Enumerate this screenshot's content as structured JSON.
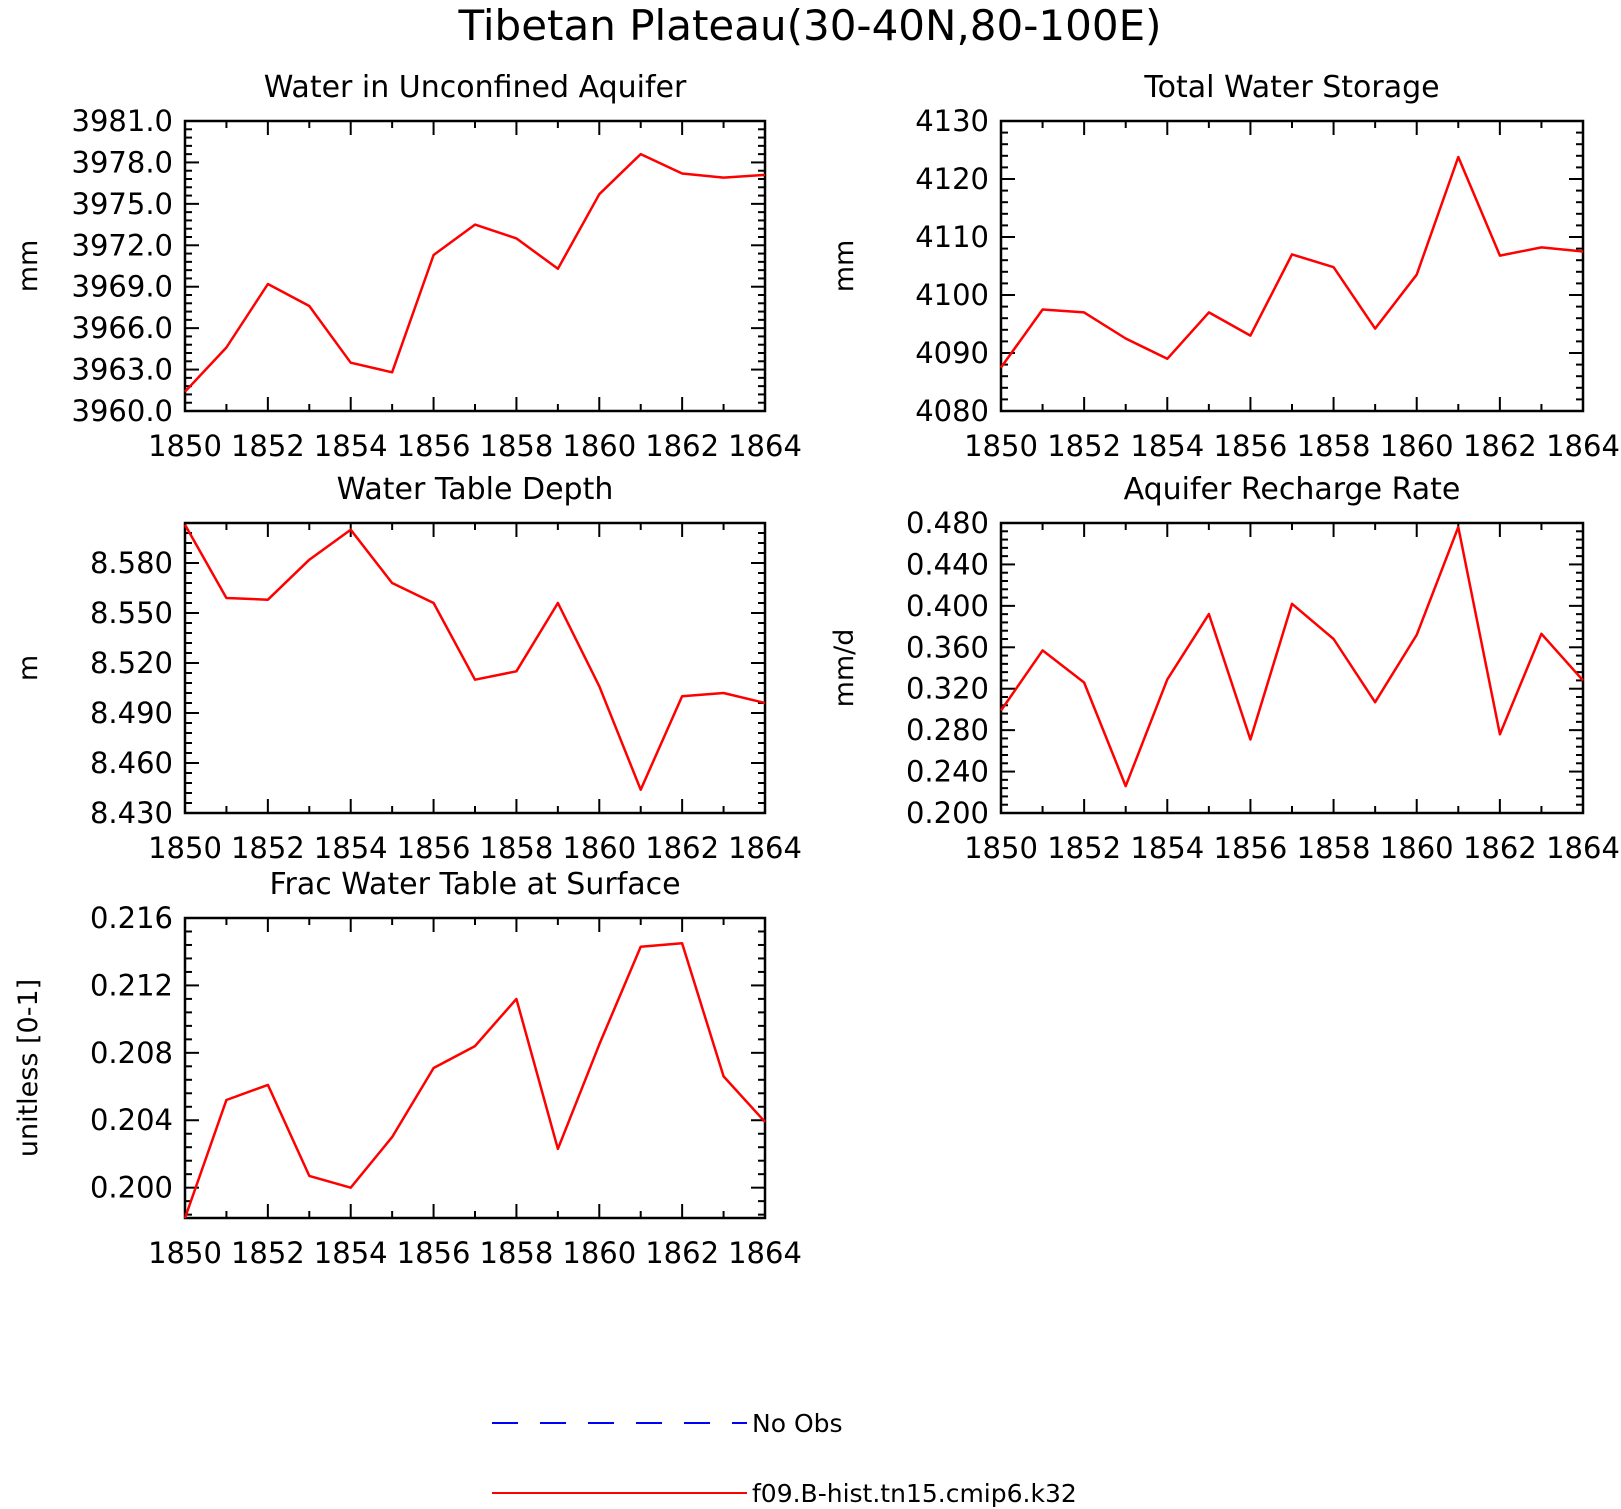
{
  "figure_title": "Tibetan Plateau(30-40N,80-100E)",
  "colors": {
    "model": "#ff0000",
    "obs": "#0000ff",
    "axis": "#000000"
  },
  "legend": {
    "entries": [
      {
        "label": "No Obs",
        "style": "dashed",
        "color": "#0000ff"
      },
      {
        "label": "f09.B-hist.tn15.cmip6.k32",
        "style": "solid",
        "color": "#ff0000"
      }
    ]
  },
  "chart_data": [
    {
      "type": "line",
      "title": "Water in Unconfined Aquifer",
      "ylabel": "mm",
      "x": [
        1850,
        1851,
        1852,
        1853,
        1854,
        1855,
        1856,
        1857,
        1858,
        1859,
        1860,
        1861,
        1862,
        1863,
        1864
      ],
      "xticks": [
        1850,
        1852,
        1854,
        1856,
        1858,
        1860,
        1862,
        1864
      ],
      "xlim": [
        1850,
        1864
      ],
      "ylim": [
        3960,
        3981
      ],
      "yticks": [
        "3960.0",
        "3963.0",
        "3966.0",
        "3969.0",
        "3972.0",
        "3975.0",
        "3978.0",
        "3981.0"
      ],
      "series": [
        {
          "name": "f09.B-hist.tn15.cmip6.k32",
          "values": [
            3961.4,
            3964.6,
            3969.2,
            3967.6,
            3963.5,
            3962.8,
            3971.3,
            3973.5,
            3972.5,
            3970.3,
            3975.7,
            3978.6,
            3977.2,
            3976.9,
            3977.1
          ]
        }
      ]
    },
    {
      "type": "line",
      "title": "Total Water Storage",
      "ylabel": "mm",
      "x": [
        1850,
        1851,
        1852,
        1853,
        1854,
        1855,
        1856,
        1857,
        1858,
        1859,
        1860,
        1861,
        1862,
        1863,
        1864
      ],
      "xticks": [
        1850,
        1852,
        1854,
        1856,
        1858,
        1860,
        1862,
        1864
      ],
      "xlim": [
        1850,
        1864
      ],
      "ylim": [
        4080,
        4130
      ],
      "yticks": [
        "4080",
        "4090",
        "4100",
        "4110",
        "4120",
        "4130"
      ],
      "series": [
        {
          "name": "f09.B-hist.tn15.cmip6.k32",
          "values": [
            4087.5,
            4097.5,
            4097.0,
            4092.5,
            4089.0,
            4097.0,
            4093.0,
            4107.0,
            4104.8,
            4094.2,
            4103.5,
            4123.8,
            4106.8,
            4108.2,
            4107.5
          ]
        }
      ]
    },
    {
      "type": "line",
      "title": "Water Table Depth",
      "ylabel": "m",
      "x": [
        1850,
        1851,
        1852,
        1853,
        1854,
        1855,
        1856,
        1857,
        1858,
        1859,
        1860,
        1861,
        1862,
        1863,
        1864
      ],
      "xticks": [
        1850,
        1852,
        1854,
        1856,
        1858,
        1860,
        1862,
        1864
      ],
      "xlim": [
        1850,
        1864
      ],
      "ylim": [
        8.43,
        8.604
      ],
      "yticks": [
        "8.430",
        "8.460",
        "8.490",
        "8.520",
        "8.550",
        "8.580"
      ],
      "series": [
        {
          "name": "f09.B-hist.tn15.cmip6.k32",
          "values": [
            8.603,
            8.559,
            8.558,
            8.582,
            8.6,
            8.568,
            8.556,
            8.51,
            8.515,
            8.556,
            8.506,
            8.444,
            8.5,
            8.502,
            8.496
          ]
        }
      ]
    },
    {
      "type": "line",
      "title": "Aquifer Recharge Rate",
      "ylabel": "mm/d",
      "x": [
        1850,
        1851,
        1852,
        1853,
        1854,
        1855,
        1856,
        1857,
        1858,
        1859,
        1860,
        1861,
        1862,
        1863,
        1864
      ],
      "xticks": [
        1850,
        1852,
        1854,
        1856,
        1858,
        1860,
        1862,
        1864
      ],
      "xlim": [
        1850,
        1864
      ],
      "ylim": [
        0.2,
        0.48
      ],
      "yticks": [
        "0.200",
        "0.240",
        "0.280",
        "0.320",
        "0.360",
        "0.400",
        "0.440",
        "0.480"
      ],
      "series": [
        {
          "name": "f09.B-hist.tn15.cmip6.k32",
          "values": [
            0.299,
            0.357,
            0.326,
            0.226,
            0.329,
            0.392,
            0.271,
            0.402,
            0.368,
            0.307,
            0.372,
            0.476,
            0.276,
            0.373,
            0.328
          ]
        }
      ]
    },
    {
      "type": "line",
      "title": "Frac Water Table at Surface",
      "ylabel": "unitless [0-1]",
      "x": [
        1850,
        1851,
        1852,
        1853,
        1854,
        1855,
        1856,
        1857,
        1858,
        1859,
        1860,
        1861,
        1862,
        1863,
        1864
      ],
      "xticks": [
        1850,
        1852,
        1854,
        1856,
        1858,
        1860,
        1862,
        1864
      ],
      "xlim": [
        1850,
        1864
      ],
      "ylim": [
        0.1982,
        0.216
      ],
      "yticks": [
        "0.200",
        "0.204",
        "0.208",
        "0.212",
        "0.216"
      ],
      "series": [
        {
          "name": "f09.B-hist.tn15.cmip6.k32",
          "values": [
            0.1982,
            0.2052,
            0.2061,
            0.2007,
            0.2,
            0.203,
            0.2071,
            0.2084,
            0.2112,
            0.2023,
            0.2085,
            0.2143,
            0.2145,
            0.2066,
            0.2039
          ]
        }
      ]
    }
  ]
}
